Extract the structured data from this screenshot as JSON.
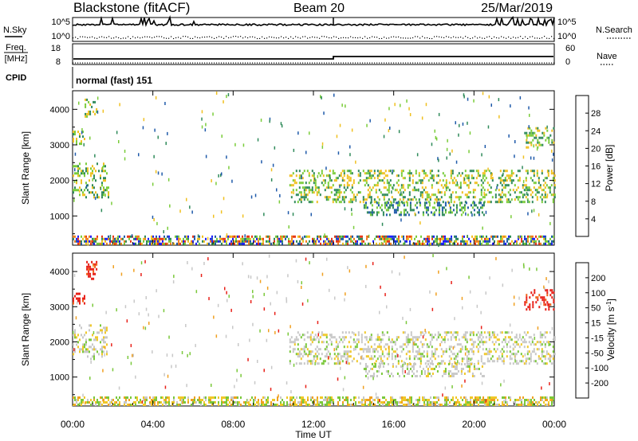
{
  "header": {
    "station": "Blackstone (fitACF)",
    "beam": "Beam 20",
    "date": "25/Mar/2019"
  },
  "panels": {
    "noise": {
      "left_label": "N.Sky",
      "right_label": "N.Search",
      "left_ticks": [
        "10^5",
        "10^0"
      ],
      "right_ticks": [
        "10^5",
        "10^0"
      ]
    },
    "freq": {
      "left_label_1": "Freq.",
      "left_label_2": "[MHz]",
      "right_label": "Nave",
      "left_ticks": [
        "18",
        "8"
      ],
      "right_ticks": [
        "60",
        "0"
      ]
    },
    "cpid": {
      "label": "CPID",
      "value": "normal (fast) 151"
    }
  },
  "chart_data": [
    {
      "type": "heatmap",
      "title": "",
      "quantity": "Power",
      "ylabel": "Slant Range [km]",
      "xlabel": "",
      "xlim": [
        "00:00",
        "24:00"
      ],
      "ylim": [
        200,
        4500
      ],
      "yticks": [
        1000,
        2000,
        3000,
        4000
      ],
      "colorbar": {
        "label": "Power [dB]",
        "ticks": [
          "4",
          "8",
          "12",
          "16",
          "20",
          "24",
          "28"
        ],
        "colors": [
          "#1f1fff",
          "#1f5aaa",
          "#2f8a5a",
          "#7acc3a",
          "#f0c020",
          "#f08020",
          "#e83818",
          "#ff0000"
        ]
      },
      "features": [
        {
          "t0": 0.0,
          "t1": 1.8,
          "r0": 1500,
          "r1": 2500,
          "level": 3
        },
        {
          "t0": 0.0,
          "t1": 0.6,
          "r0": 3000,
          "r1": 3400,
          "level": 3
        },
        {
          "t0": 0.6,
          "t1": 1.2,
          "r0": 3800,
          "r1": 4300,
          "level": 3
        },
        {
          "t0": 10.8,
          "t1": 24.0,
          "r0": 1400,
          "r1": 2300,
          "level": 3
        },
        {
          "t0": 14.5,
          "t1": 20.5,
          "r0": 1000,
          "r1": 1400,
          "level": 2
        },
        {
          "t0": 22.5,
          "t1": 24.0,
          "r0": 2900,
          "r1": 3500,
          "level": 3
        },
        {
          "t0": 0.0,
          "t1": 24.0,
          "r0": 200,
          "r1": 450,
          "level": 4
        }
      ]
    },
    {
      "type": "heatmap",
      "title": "",
      "quantity": "Velocity",
      "ylabel": "Slant Range [km]",
      "xlabel": "Time UT",
      "xlim": [
        "00:00",
        "24:00"
      ],
      "ylim": [
        200,
        4500
      ],
      "yticks": [
        1000,
        2000,
        3000,
        4000
      ],
      "xticks": [
        "00:00",
        "04:00",
        "08:00",
        "12:00",
        "16:00",
        "20:00",
        "00:00"
      ],
      "colorbar": {
        "label": "Velocity [m s-1]",
        "ticks": [
          "200",
          "100",
          "50",
          "15",
          "-15",
          "-50",
          "-100",
          "-200"
        ],
        "colors": [
          "#1a3fb0",
          "#1e6ad0",
          "#2a8a3a",
          "#7ac83a",
          "#c8c8c8",
          "#f0c828",
          "#f0a020",
          "#f06018",
          "#e82018"
        ]
      },
      "features": [
        {
          "t0": 0.0,
          "t1": 1.8,
          "r0": 1500,
          "r1": 2500,
          "level": 4
        },
        {
          "t0": 0.0,
          "t1": 0.6,
          "r0": 3100,
          "r1": 3400,
          "level": 8
        },
        {
          "t0": 0.6,
          "t1": 1.2,
          "r0": 3800,
          "r1": 4300,
          "level": 8
        },
        {
          "t0": 10.8,
          "t1": 24.0,
          "r0": 1400,
          "r1": 2300,
          "level": 4
        },
        {
          "t0": 14.5,
          "t1": 20.5,
          "r0": 1000,
          "r1": 1400,
          "level": 4
        },
        {
          "t0": 22.5,
          "t1": 24.0,
          "r0": 2900,
          "r1": 3500,
          "level": 8
        },
        {
          "t0": 0.0,
          "t1": 24.0,
          "r0": 200,
          "r1": 450,
          "level": 3
        }
      ]
    }
  ]
}
